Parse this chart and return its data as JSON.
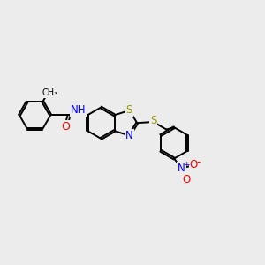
{
  "bg_color": "#ececec",
  "bond_color": "#000000",
  "bond_lw": 1.4,
  "atom_colors": {
    "S": "#999900",
    "N": "#0000ff",
    "O": "#ff0000",
    "H": "#555555",
    "C": "#000000"
  },
  "font_size": 8.5,
  "dbo": 0.06
}
